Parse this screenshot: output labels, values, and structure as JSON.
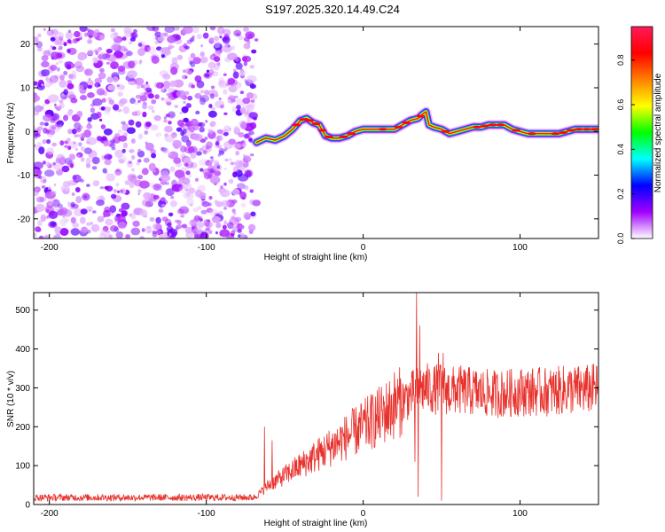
{
  "title": "S197.2025.320.14.49.C24",
  "colors": {
    "trace": "#e8312c",
    "axis": "#000000"
  },
  "chart_data": [
    {
      "type": "heatmap",
      "title": "S197.2025.320.14.49.C24",
      "xlabel": "Height of straight line (km)",
      "ylabel": "Frequency (Hz)",
      "xlim": [
        -210,
        150
      ],
      "ylim": [
        -24.5,
        24
      ],
      "xticks": [
        -200,
        -100,
        0,
        100
      ],
      "xtick_labels": [
        "-200",
        "-100",
        "0",
        "100"
      ],
      "yticks": [
        -20,
        -10,
        0,
        10,
        20
      ],
      "ytick_labels": [
        "-20",
        "-10",
        "0",
        "10",
        "20"
      ],
      "noise_region_x": [
        -210,
        -68
      ],
      "ridge": {
        "x": [
          -68,
          -62,
          -56,
          -50,
          -45,
          -40,
          -36,
          -32,
          -28,
          -24,
          -20,
          -15,
          -10,
          -5,
          0,
          5,
          10,
          15,
          20,
          25,
          30,
          35,
          38,
          40,
          42,
          45,
          50,
          55,
          60,
          65,
          70,
          75,
          80,
          85,
          90,
          95,
          100,
          105,
          110,
          115,
          120,
          125,
          130,
          135,
          140,
          145,
          150
        ],
        "freq": [
          -2.5,
          -1.5,
          -2,
          -1,
          0.5,
          2.5,
          3,
          2,
          1.5,
          -1,
          -1.5,
          -1.5,
          -1,
          0,
          0.5,
          0.5,
          0.5,
          0.5,
          0.5,
          1.5,
          2.5,
          3,
          4,
          4.5,
          1.5,
          1,
          0.5,
          -0.5,
          0,
          0.5,
          1,
          1,
          1.5,
          1.5,
          1.5,
          0.5,
          0,
          -0.5,
          -0.5,
          -0.5,
          -0.5,
          -0.5,
          0,
          0.5,
          0.5,
          0.5,
          0.5
        ]
      },
      "colorbar": {
        "label": "Normalized spectral amplitude",
        "range": [
          0,
          0.95
        ],
        "ticks": [
          0.0,
          0.2,
          0.4,
          0.6,
          0.8
        ],
        "tick_labels": [
          "0.0",
          "0.2",
          "0.4",
          "0.6",
          "0.8"
        ],
        "stops": [
          "#ffffff",
          "#a000ff",
          "#0000ff",
          "#00ffff",
          "#00ff00",
          "#ffff00",
          "#ff8000",
          "#ff0000",
          "#ff1a5a"
        ]
      }
    },
    {
      "type": "line",
      "xlabel": "Height of straight line (km)",
      "ylabel": "SNR (10 * v/v)",
      "xlim": [
        -210,
        150
      ],
      "ylim": [
        0,
        545
      ],
      "xticks": [
        -200,
        -100,
        0,
        100
      ],
      "xtick_labels": [
        "-200",
        "-100",
        "0",
        "100"
      ],
      "yticks": [
        0,
        100,
        200,
        300,
        400,
        500
      ],
      "ytick_labels": [
        "0",
        "100",
        "200",
        "300",
        "400",
        "500"
      ],
      "series": [
        {
          "name": "SNR",
          "envelope_x": [
            -210,
            -160,
            -100,
            -70,
            -68,
            -60,
            -50,
            -40,
            -30,
            -20,
            -10,
            0,
            10,
            20,
            30,
            35,
            40,
            45,
            50,
            55,
            60,
            70,
            80,
            90,
            100,
            110,
            120,
            130,
            140,
            150
          ],
          "envelope_mean": [
            18,
            18,
            18,
            18,
            22,
            50,
            75,
            100,
            125,
            150,
            175,
            200,
            225,
            255,
            280,
            295,
            300,
            295,
            300,
            290,
            295,
            290,
            285,
            285,
            290,
            290,
            290,
            295,
            295,
            300
          ],
          "spikes": [
            {
              "x": -63,
              "y": 200
            },
            {
              "x": -58,
              "y": 165
            },
            {
              "x": -20,
              "y": 170
            },
            {
              "x": 33,
              "y": 110
            },
            {
              "x": 34,
              "y": 545
            },
            {
              "x": 35,
              "y": 20
            },
            {
              "x": 36,
              "y": 460
            },
            {
              "x": 48,
              "y": 390
            },
            {
              "x": 50,
              "y": 10
            },
            {
              "x": 51,
              "y": 390
            },
            {
              "x": 20,
              "y": 340
            }
          ]
        }
      ]
    }
  ]
}
